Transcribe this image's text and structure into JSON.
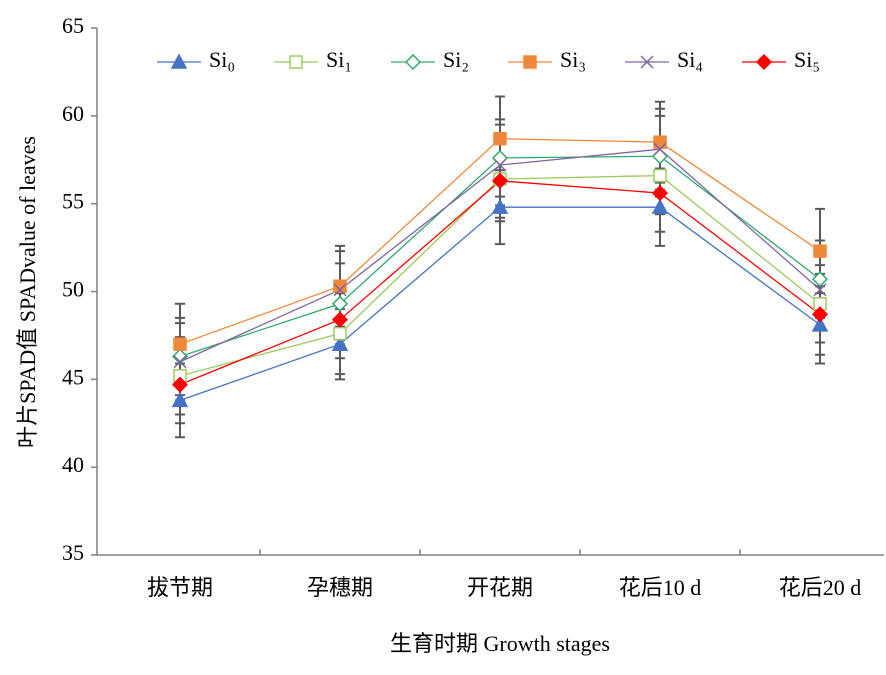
{
  "chart_data": {
    "type": "line",
    "y_label": "叶片SPAD值 SPADvalue of leaves",
    "x_label": "生育时期 Growth stages",
    "categories": [
      "拔节期",
      "孕穗期",
      "开花期",
      "花后10 d",
      "花后20 d"
    ],
    "ylim": [
      35,
      65
    ],
    "yticks": [
      35,
      40,
      45,
      50,
      55,
      60,
      65
    ],
    "series": [
      {
        "name": "Si₀",
        "color": "#4472c4",
        "marker": "triangle",
        "filled": true,
        "values": [
          43.8,
          47.0,
          54.8,
          54.8,
          48.1
        ],
        "errors": [
          2.1,
          2.0,
          2.1,
          2.2,
          2.2
        ]
      },
      {
        "name": "Si₁",
        "color": "#9bcb5b",
        "marker": "square",
        "filled": false,
        "values": [
          45.2,
          47.6,
          56.4,
          56.6,
          49.3
        ],
        "errors": [
          2.2,
          2.3,
          2.2,
          2.2,
          2.2
        ]
      },
      {
        "name": "Si₂",
        "color": "#2eaa6b",
        "marker": "diamond",
        "filled": false,
        "values": [
          46.3,
          49.3,
          57.6,
          57.7,
          50.7
        ],
        "errors": [
          2.2,
          2.3,
          2.2,
          2.3,
          2.2
        ]
      },
      {
        "name": "Si₃",
        "color": "#f0883a",
        "marker": "square",
        "filled": true,
        "values": [
          47.0,
          50.3,
          58.7,
          58.5,
          52.3
        ],
        "errors": [
          2.3,
          2.3,
          2.4,
          2.3,
          2.4
        ]
      },
      {
        "name": "Si₄",
        "color": "#8064a2",
        "marker": "cross",
        "filled": false,
        "values": [
          46.0,
          50.1,
          57.2,
          58.1,
          50.1
        ],
        "errors": [
          2.2,
          2.2,
          2.3,
          2.3,
          2.3
        ]
      },
      {
        "name": "Si₅",
        "color": "#ff0000",
        "marker": "diamond",
        "filled": true,
        "values": [
          44.7,
          48.4,
          56.3,
          55.6,
          48.7
        ],
        "errors": [
          2.2,
          2.2,
          2.3,
          2.2,
          2.3
        ]
      }
    ]
  }
}
